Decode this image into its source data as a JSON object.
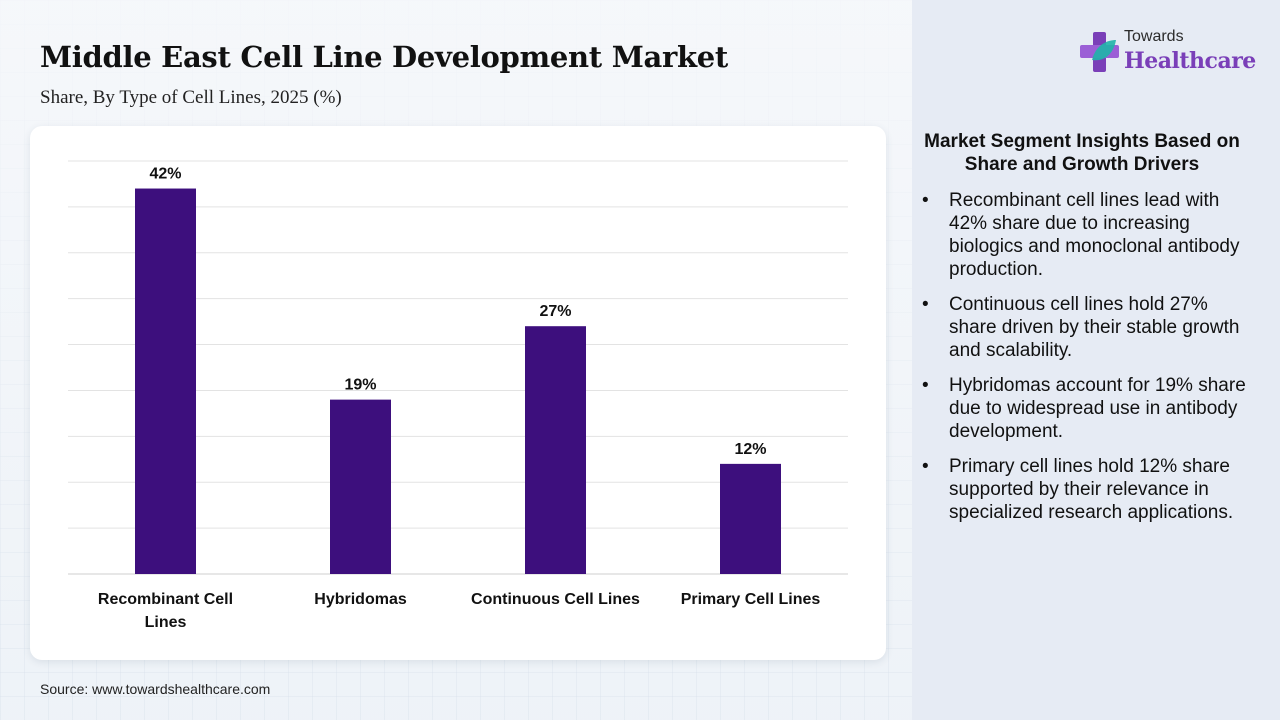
{
  "header": {
    "title": "Middle East Cell Line Development Market",
    "subtitle": "Share, By Type of Cell Lines, 2025 (%)"
  },
  "logo": {
    "top_text": "Towards",
    "bottom_text": "Healthcare",
    "icon": "plus-leaf-icon",
    "colors": {
      "purple": "#7a3fb8",
      "teal": "#1fb5a8"
    }
  },
  "chart_data": {
    "type": "bar",
    "categories": [
      "Recombinant Cell Lines",
      "Hybridomas",
      "Continuous Cell Lines",
      "Primary Cell Lines"
    ],
    "values": [
      42,
      19,
      27,
      12
    ],
    "value_labels": [
      "42%",
      "19%",
      "27%",
      "12%"
    ],
    "ylim": [
      0,
      45
    ],
    "grid": true,
    "y_axis_labels_shown": false,
    "bar_color": "#3d0f7d"
  },
  "insights": {
    "title": "Market Segment Insights Based on Share and Growth Drivers",
    "bullet": "•",
    "items": [
      "Recombinant cell lines lead with 42% share due to increasing biologics and monoclonal antibody production.",
      "Continuous cell lines hold 27% share driven by their stable growth and scalability.",
      "Hybridomas account for 19% share due to widespread use in antibody development.",
      "Primary cell lines hold 12% share supported by their relevance in specialized research applications."
    ]
  },
  "footer": {
    "source": "Source: www.towardshealthcare.com"
  }
}
